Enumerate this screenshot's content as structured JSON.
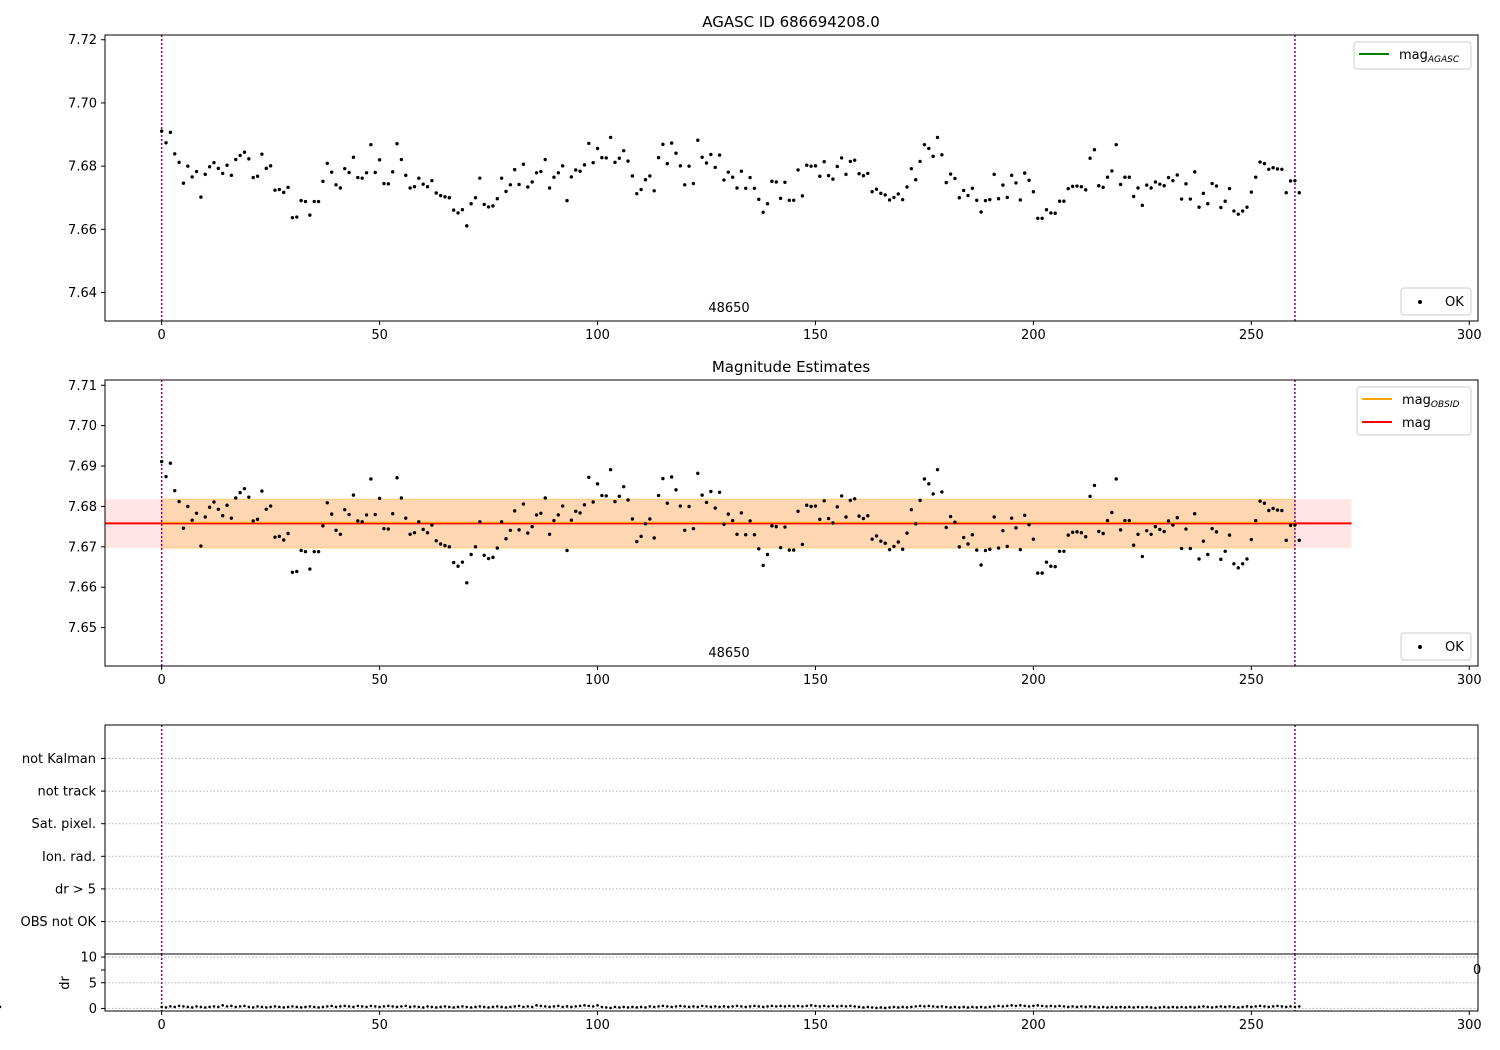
{
  "chart_data": [
    {
      "type": "scatter",
      "title": "AGASC ID 686694208.0",
      "center_label": "48650",
      "xlim": [
        -13,
        302
      ],
      "ylim": [
        7.631,
        7.7215
      ],
      "xticks": [
        0,
        50,
        100,
        150,
        200,
        250,
        300
      ],
      "yticks": [
        7.64,
        7.66,
        7.68,
        7.7,
        7.72
      ],
      "ytick_labels": [
        "7.64",
        "7.66",
        "7.68",
        "7.70",
        "7.72"
      ],
      "vlines": [
        0,
        260
      ],
      "legend_lines": [
        {
          "name": "mag",
          "sub": "AGASC",
          "color": "#008000"
        }
      ],
      "legend_points": [
        {
          "name": "OK",
          "color": "#000000"
        }
      ],
      "series_name": "OK"
    },
    {
      "type": "scatter",
      "title": "Magnitude Estimates",
      "center_label": "48650",
      "xlim": [
        -13,
        302
      ],
      "ylim": [
        7.6405,
        7.7113
      ],
      "xticks": [
        0,
        50,
        100,
        150,
        200,
        250,
        300
      ],
      "yticks": [
        7.65,
        7.66,
        7.67,
        7.68,
        7.69,
        7.7,
        7.71
      ],
      "ytick_labels": [
        "7.65",
        "7.66",
        "7.67",
        "7.68",
        "7.69",
        "7.70",
        "7.71"
      ],
      "vlines": [
        0,
        260
      ],
      "mag": 7.6758,
      "mag_band": [
        7.6697,
        7.6818
      ],
      "mag_band_x": [
        -13,
        273
      ],
      "obsid_band_x": [
        0,
        260
      ],
      "legend_lines": [
        {
          "name": "mag",
          "sub": "OBSID",
          "color": "#ffa500"
        },
        {
          "name": "mag",
          "sub": "",
          "color": "#ff0000"
        }
      ],
      "legend_points": [
        {
          "name": "OK",
          "color": "#000000"
        }
      ],
      "series_name": "OK"
    },
    {
      "type": "scatter",
      "flags": [
        "not Kalman",
        "not track",
        "Sat. pixel.",
        "Ion. rad.",
        "dr > 5",
        "OBS not OK"
      ],
      "vlines": [
        0,
        260
      ]
    },
    {
      "type": "scatter",
      "ylabel": "dr",
      "xlim": [
        -13,
        302
      ],
      "ylim": [
        -0.5,
        10.6
      ],
      "xticks": [
        0,
        50,
        100,
        150,
        200,
        250,
        300
      ],
      "yticks": [
        0,
        5,
        10
      ],
      "ytick_labels": [
        "0",
        "5",
        "10"
      ],
      "right_edge_label": "0",
      "vlines": [
        0,
        260
      ]
    }
  ],
  "samples": {
    "x_start": 0,
    "x_step": 1,
    "mag": [
      7.6911,
      7.6874,
      7.6907,
      7.6839,
      7.6812,
      7.6746,
      7.68,
      7.6766,
      7.6783,
      7.6702,
      7.6774,
      7.6798,
      7.6811,
      7.6793,
      7.6777,
      7.6803,
      7.6771,
      7.6821,
      7.6834,
      7.6844,
      7.6823,
      7.6764,
      7.6768,
      7.6838,
      7.6793,
      7.6801,
      7.6724,
      7.6726,
      7.6717,
      7.6733,
      7.6637,
      7.6639,
      7.6691,
      7.6688,
      7.6645,
      7.6688,
      7.6688,
      7.6752,
      7.6809,
      7.6781,
      7.6741,
      7.6731,
      7.6792,
      7.678,
      7.6828,
      7.6764,
      7.6762,
      7.6779,
      7.6868,
      7.678,
      7.682,
      7.6745,
      7.6744,
      7.6782,
      7.6871,
      7.6821,
      7.6771,
      7.6731,
      7.6735,
      7.6762,
      7.6743,
      7.6735,
      7.6754,
      7.6715,
      7.6707,
      7.6703,
      7.67,
      7.6661,
      7.6652,
      7.6662,
      7.6611,
      7.6681,
      7.67,
      7.6762,
      7.6679,
      7.6671,
      7.6674,
      7.6697,
      7.6762,
      7.672,
      7.6741,
      7.6789,
      7.6742,
      7.6806,
      7.6734,
      7.675,
      7.6779,
      7.6783,
      7.6821,
      7.6731,
      7.6765,
      7.6779,
      7.6801,
      7.6691,
      7.6766,
      7.6788,
      7.6784,
      7.6804,
      7.6872,
      7.6811,
      7.6856,
      7.6827,
      7.6826,
      7.6891,
      7.6812,
      7.6825,
      7.6849,
      7.6816,
      7.6769,
      7.6713,
      7.6726,
      7.6757,
      7.6769,
      7.6722,
      7.6827,
      7.6869,
      7.6808,
      7.6873,
      7.6841,
      7.6801,
      7.6741,
      7.68,
      7.6745,
      7.6882,
      7.6828,
      7.681,
      7.6837,
      7.6796,
      7.6835,
      7.6756,
      7.6781,
      7.6765,
      7.6731,
      7.6784,
      7.673,
      7.6764,
      7.673,
      7.6695,
      7.6654,
      7.6681,
      7.6752,
      7.675,
      7.6698,
      7.6749,
      7.6692,
      7.6692,
      7.6788,
      7.6706,
      7.6803,
      7.68,
      7.6801,
      7.6768,
      7.6814,
      7.677,
      7.6759,
      7.6799,
      7.6826,
      7.6774,
      7.6815,
      7.6819,
      7.6776,
      7.677,
      7.6777,
      7.6719,
      7.6727,
      7.6714,
      7.6709,
      7.6693,
      7.6701,
      7.6712,
      7.6694,
      7.6734,
      7.6792,
      7.6757,
      7.6815,
      7.6868,
      7.6856,
      7.6831,
      7.6891,
      7.6836,
      7.6748,
      7.6775,
      7.6761,
      7.67,
      7.6723,
      7.6707,
      7.673,
      7.6692,
      7.6655,
      7.6691,
      7.6694,
      7.6774,
      7.6697,
      7.674,
      7.6701,
      7.6771,
      7.6747,
      7.6693,
      7.6778,
      7.6755,
      7.6719,
      7.6635,
      7.6635,
      7.6662,
      7.6652,
      7.6651,
      7.6689,
      7.6689,
      7.6729,
      7.6736,
      7.6737,
      7.6735,
      7.6725,
      7.6825,
      7.6852,
      7.6738,
      7.6733,
      7.6765,
      7.6785,
      7.6868,
      7.6742,
      7.6765,
      7.6765,
      7.6704,
      7.6731,
      7.6676,
      7.674,
      7.6731,
      7.675,
      7.6743,
      7.6738,
      7.6764,
      7.6754,
      7.6772,
      7.6696,
      7.6744,
      7.6696,
      7.6782,
      7.667,
      7.6714,
      7.6681,
      7.6745,
      7.6737,
      7.6669,
      7.6689,
      7.6729,
      7.6658,
      7.6648,
      7.6658,
      7.667,
      7.6718,
      7.6765,
      7.6813,
      7.6808,
      7.679,
      7.6795,
      7.6791,
      7.679,
      7.6716,
      7.6753,
      7.6754,
      7.6716
    ],
    "dr": [
      0.3,
      0.2,
      0.4,
      0.3,
      0.5,
      0.4,
      0.3,
      0.2,
      0.4,
      0.3,
      0.2,
      0.3,
      0.4,
      0.3,
      0.6,
      0.4,
      0.5,
      0.3,
      0.4,
      0.5,
      0.3,
      0.2,
      0.4,
      0.3,
      0.2,
      0.3,
      0.4,
      0.3,
      0.2,
      0.3,
      0.4,
      0.3,
      0.2,
      0.3,
      0.4,
      0.3,
      0.2,
      0.3,
      0.4,
      0.5,
      0.3,
      0.4,
      0.5,
      0.4,
      0.3,
      0.5,
      0.4,
      0.3,
      0.5,
      0.4,
      0.3,
      0.4,
      0.5,
      0.4,
      0.3,
      0.4,
      0.5,
      0.3,
      0.4,
      0.3,
      0.2,
      0.4,
      0.3,
      0.2,
      0.3,
      0.4,
      0.3,
      0.2,
      0.3,
      0.4,
      0.3,
      0.2,
      0.3,
      0.4,
      0.3,
      0.2,
      0.3,
      0.4,
      0.3,
      0.2,
      0.3,
      0.4,
      0.5,
      0.3,
      0.4,
      0.3,
      0.6,
      0.5,
      0.4,
      0.3,
      0.4,
      0.5,
      0.3,
      0.4,
      0.3,
      0.4,
      0.5,
      0.6,
      0.5,
      0.4,
      0.6,
      0.3,
      0.2,
      0.1,
      0.3,
      0.2,
      0.3,
      0.2,
      0.3,
      0.2,
      0.3,
      0.2,
      0.4,
      0.3,
      0.4,
      0.5,
      0.4,
      0.3,
      0.4,
      0.5,
      0.4,
      0.3,
      0.4,
      0.3,
      0.5,
      0.4,
      0.3,
      0.4,
      0.3,
      0.4,
      0.3,
      0.4,
      0.5,
      0.4,
      0.3,
      0.4,
      0.5,
      0.4,
      0.3,
      0.4,
      0.5,
      0.4,
      0.5,
      0.4,
      0.5,
      0.4,
      0.5,
      0.4,
      0.5,
      0.6,
      0.5,
      0.4,
      0.5,
      0.4,
      0.5,
      0.4,
      0.5,
      0.4,
      0.5,
      0.4,
      0.3,
      0.2,
      0.3,
      0.2,
      0.1,
      0.2,
      0.1,
      0.2,
      0.3,
      0.2,
      0.3,
      0.2,
      0.3,
      0.4,
      0.5,
      0.4,
      0.5,
      0.4,
      0.3,
      0.4,
      0.3,
      0.2,
      0.3,
      0.2,
      0.3,
      0.2,
      0.3,
      0.2,
      0.3,
      0.2,
      0.3,
      0.4,
      0.5,
      0.4,
      0.5,
      0.6,
      0.5,
      0.6,
      0.5,
      0.4,
      0.5,
      0.6,
      0.5,
      0.4,
      0.5,
      0.4,
      0.5,
      0.4,
      0.3,
      0.4,
      0.3,
      0.4,
      0.3,
      0.4,
      0.3,
      0.2,
      0.3,
      0.2,
      0.3,
      0.2,
      0.3,
      0.2,
      0.3,
      0.2,
      0.3,
      0.2,
      0.3,
      0.2,
      0.1,
      0.2,
      0.3,
      0.2,
      0.3,
      0.2,
      0.3,
      0.2,
      0.3,
      0.2,
      0.3,
      0.4,
      0.3,
      0.2,
      0.3,
      0.4,
      0.3,
      0.4,
      0.3,
      0.2,
      0.3,
      0.4,
      0.3,
      0.4,
      0.5,
      0.4,
      0.3,
      0.4,
      0.5,
      0.4,
      0.3,
      0.4,
      0.3,
      0.4,
      0.3
    ]
  }
}
